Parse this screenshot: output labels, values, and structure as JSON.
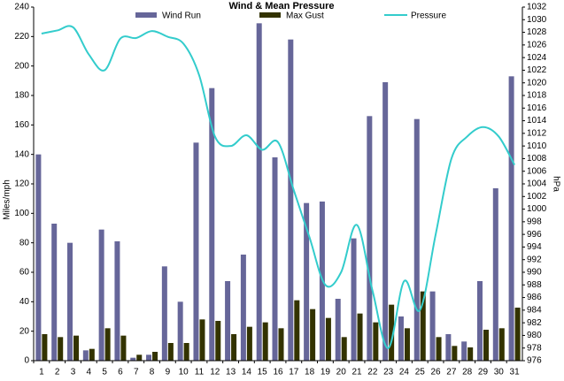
{
  "chart_data": {
    "type": "bar_line",
    "title": "Wind & Mean Pressure",
    "categories": [
      "1",
      "2",
      "3",
      "4",
      "5",
      "6",
      "7",
      "8",
      "9",
      "10",
      "11",
      "12",
      "13",
      "14",
      "15",
      "16",
      "17",
      "18",
      "19",
      "20",
      "21",
      "22",
      "23",
      "24",
      "25",
      "26",
      "27",
      "28",
      "29",
      "30",
      "31"
    ],
    "series": [
      {
        "name": "Wind Run",
        "color": "#666699",
        "axis": "y",
        "values": [
          140,
          93,
          80,
          7,
          89,
          81,
          2,
          4,
          64,
          40,
          148,
          185,
          54,
          72,
          229,
          138,
          218,
          107,
          108,
          42,
          83,
          166,
          189,
          30,
          164,
          47,
          18,
          13,
          54,
          117,
          193
        ]
      },
      {
        "name": "Max Gust",
        "color": "#333300",
        "axis": "y",
        "values": [
          18,
          16,
          17,
          8,
          22,
          17,
          4,
          6,
          12,
          12,
          28,
          27,
          18,
          23,
          26,
          22,
          41,
          35,
          29,
          16,
          32,
          26,
          38,
          22,
          47,
          16,
          10,
          9,
          21,
          22,
          36
        ]
      },
      {
        "name": "Pressure",
        "color": "#33cccc",
        "axis": "y2",
        "values": [
          1027.8,
          1028.3,
          1028.8,
          1024.5,
          1022,
          1027,
          1027.1,
          1028.2,
          1027.3,
          1026.2,
          1021.2,
          1011.5,
          1010,
          1011.7,
          1009.4,
          1010.6,
          1003,
          995.5,
          988,
          990,
          997.5,
          987,
          978,
          988.6,
          984,
          996,
          1008,
          1011.5,
          1013,
          1011.5,
          1007
        ]
      }
    ],
    "ylabel": "Miles/mph",
    "y2label": "hPa",
    "ylim": [
      0,
      240
    ],
    "yticks": [
      0,
      20,
      40,
      60,
      80,
      100,
      120,
      140,
      160,
      180,
      200,
      220,
      240
    ],
    "y2lim": [
      976,
      1032
    ],
    "y2ticks": [
      976,
      978,
      980,
      982,
      984,
      986,
      988,
      990,
      992,
      994,
      996,
      998,
      1000,
      1002,
      1004,
      1006,
      1008,
      1010,
      1012,
      1014,
      1016,
      1018,
      1020,
      1022,
      1024,
      1026,
      1028,
      1030,
      1032
    ]
  }
}
